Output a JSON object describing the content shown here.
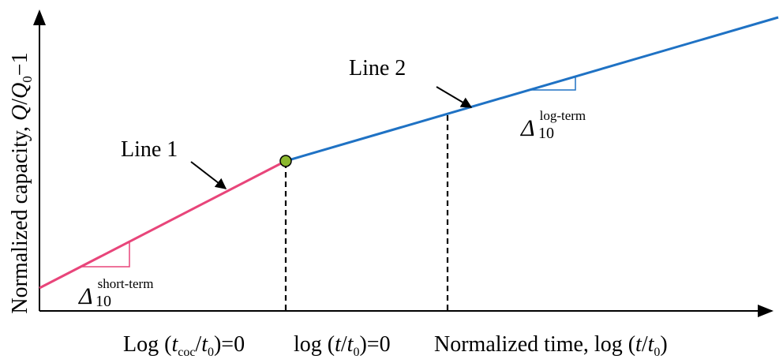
{
  "y_axis_label": {
    "main": "Normalized capacity, ",
    "q": "Q",
    "slash": "/",
    "q0": "Q",
    "q0_sub": "0",
    "tail": "−1"
  },
  "x_axis_labels": {
    "tcoc": {
      "prefix": "Log (",
      "t": "t",
      "sub_coc": "coc",
      "slash": "/",
      "t0": "t",
      "sub0": "0",
      "suffix": ")=0"
    },
    "tt0": {
      "prefix": "log (",
      "t": "t",
      "slash": "/",
      "t0": "t",
      "sub0": "0",
      "suffix": ")=0"
    },
    "normalized_time": {
      "prefix": "Normalized time, log (",
      "t": "t",
      "slash": "/",
      "t0": "t",
      "sub0": "0",
      "suffix": ")"
    }
  },
  "line1": {
    "label": "Line 1",
    "color": "#e8457a"
  },
  "line2": {
    "label": "Line 2",
    "color": "#1f72c4"
  },
  "delta_short": {
    "symbol": "Δ",
    "sub": "10",
    "sup": "short-term"
  },
  "delta_long": {
    "symbol": "Δ",
    "sub": "10",
    "sup": "log-term"
  },
  "transition_point_color": "#8cb82f"
}
